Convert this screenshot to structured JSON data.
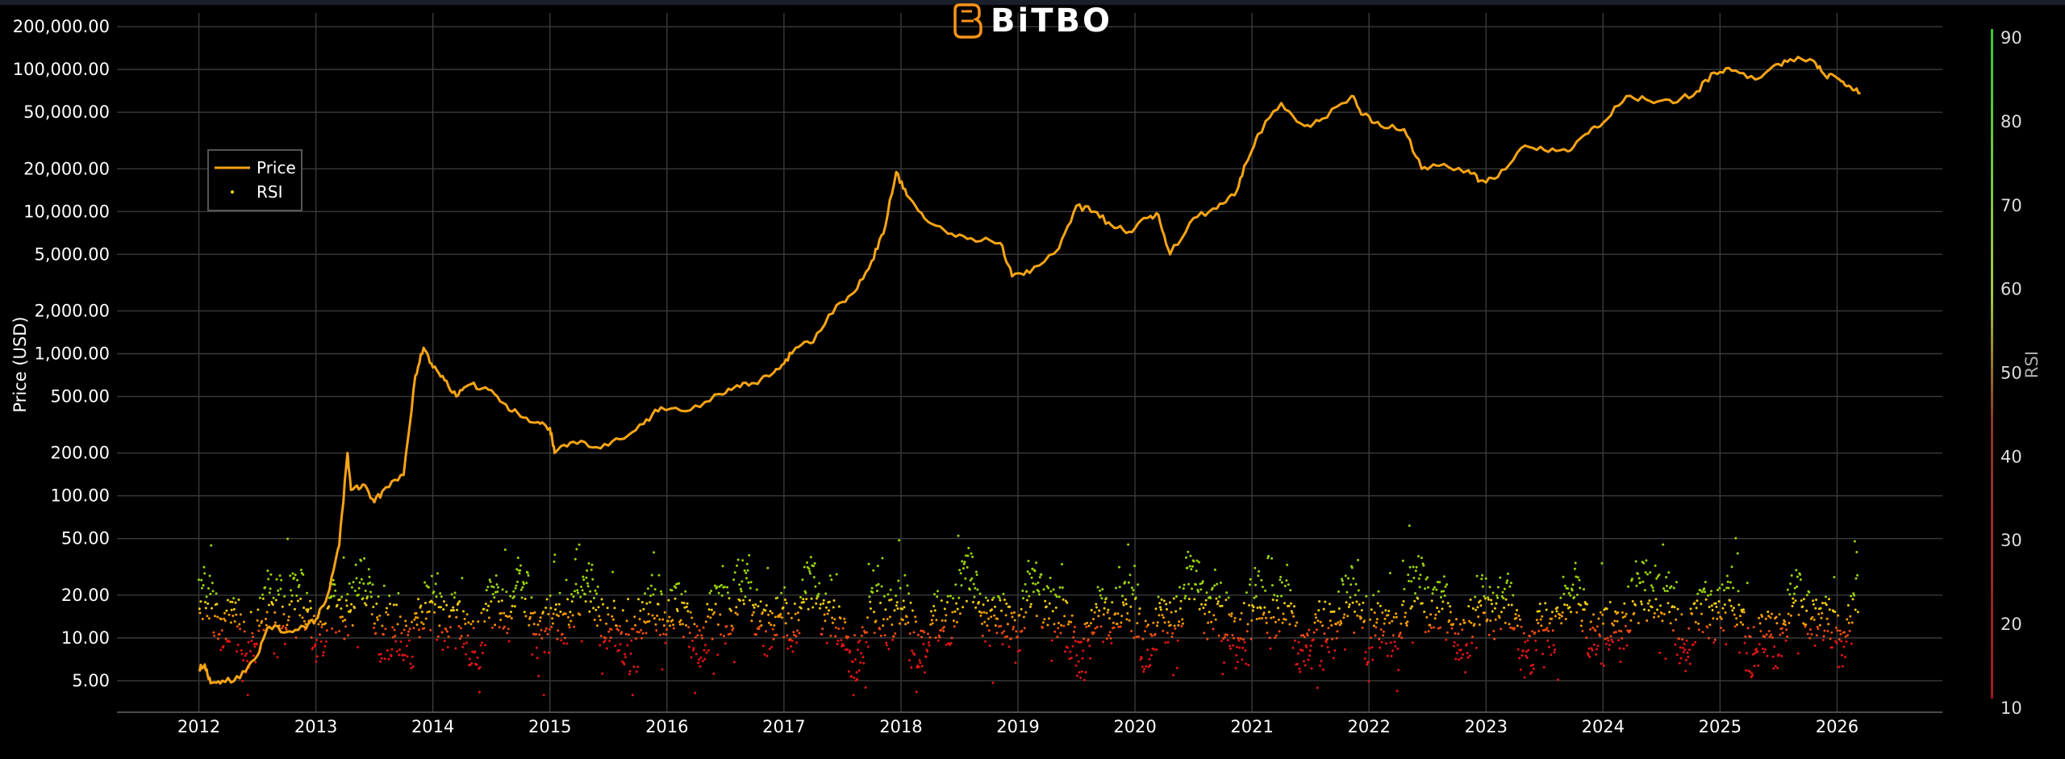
{
  "brand": {
    "name": "BiTBO",
    "logo_color": "#f7931a"
  },
  "chart_data": {
    "type": "line",
    "title": "",
    "xlabel": "",
    "ylabel": "Price (USD)",
    "y2label": "RSI",
    "yscale": "log",
    "ylim": [
      3,
      250000
    ],
    "y2lim": [
      9.5,
      93
    ],
    "xlim": [
      2011.3,
      2026.9
    ],
    "grid": true,
    "legend_position": "top-left",
    "colors": {
      "background": "#000000",
      "grid": "#3a3a3a",
      "price": "#f7a416",
      "rsi_low": "#e01010",
      "rsi_mid": "#f59b00",
      "rsi_high": "#9ad40a"
    },
    "x_ticks": [
      "2012",
      "2013",
      "2014",
      "2015",
      "2016",
      "2017",
      "2018",
      "2019",
      "2020",
      "2021",
      "2022",
      "2023",
      "2024",
      "2025",
      "2026"
    ],
    "y_ticks": [
      {
        "value": 200000,
        "label": "200,000.00"
      },
      {
        "value": 100000,
        "label": "100,000.00"
      },
      {
        "value": 50000,
        "label": "50,000.00"
      },
      {
        "value": 20000,
        "label": "20,000.00"
      },
      {
        "value": 10000,
        "label": "10,000.00"
      },
      {
        "value": 5000,
        "label": "5,000.00"
      },
      {
        "value": 2000,
        "label": "2,000.00"
      },
      {
        "value": 1000,
        "label": "1,000.00"
      },
      {
        "value": 500,
        "label": "500.00"
      },
      {
        "value": 200,
        "label": "200.00"
      },
      {
        "value": 100,
        "label": "100.00"
      },
      {
        "value": 50,
        "label": "50.00"
      },
      {
        "value": 20,
        "label": "20.00"
      },
      {
        "value": 10,
        "label": "10.00"
      },
      {
        "value": 5,
        "label": "5.00"
      }
    ],
    "y2_ticks": [
      "90",
      "80",
      "70",
      "60",
      "50",
      "40",
      "30",
      "20",
      "10"
    ],
    "series": [
      {
        "name": "Price",
        "type": "line",
        "x": [
          2012.0,
          2012.05,
          2012.1,
          2012.2,
          2012.35,
          2012.5,
          2012.6,
          2012.75,
          2012.9,
          2013.0,
          2013.1,
          2013.2,
          2013.27,
          2013.3,
          2013.4,
          2013.5,
          2013.6,
          2013.75,
          2013.85,
          2013.92,
          2014.0,
          2014.1,
          2014.2,
          2014.3,
          2014.45,
          2014.6,
          2014.75,
          2014.9,
          2015.0,
          2015.04,
          2015.2,
          2015.4,
          2015.6,
          2015.8,
          2015.95,
          2016.2,
          2016.45,
          2016.6,
          2016.75,
          2016.9,
          2017.0,
          2017.1,
          2017.25,
          2017.45,
          2017.6,
          2017.75,
          2017.85,
          2017.96,
          2018.05,
          2018.2,
          2018.4,
          2018.6,
          2018.85,
          2018.95,
          2019.1,
          2019.35,
          2019.5,
          2019.65,
          2019.8,
          2019.95,
          2020.1,
          2020.2,
          2020.3,
          2020.5,
          2020.7,
          2020.85,
          2020.95,
          2021.05,
          2021.25,
          2021.45,
          2021.6,
          2021.85,
          2021.95,
          2022.1,
          2022.3,
          2022.45,
          2022.6,
          2022.85,
          2022.95,
          2023.1,
          2023.3,
          2023.5,
          2023.7,
          2023.85,
          2024.0,
          2024.2,
          2024.4,
          2024.6,
          2024.8,
          2024.95,
          2025.1,
          2025.3,
          2025.45,
          2025.6,
          2025.8,
          2025.9,
          2026.0,
          2026.1,
          2026.2
        ],
        "y": [
          6,
          6.5,
          4.8,
          5,
          5.2,
          7.5,
          12,
          11,
          12,
          13.5,
          20,
          45,
          200,
          110,
          120,
          90,
          115,
          140,
          700,
          1100,
          800,
          650,
          500,
          600,
          580,
          450,
          360,
          330,
          300,
          200,
          240,
          220,
          250,
          320,
          420,
          400,
          520,
          600,
          620,
          720,
          850,
          1100,
          1200,
          2200,
          2700,
          4500,
          7000,
          19000,
          13000,
          9000,
          7000,
          6500,
          6000,
          3500,
          3700,
          5500,
          11000,
          10000,
          8000,
          7200,
          9000,
          9500,
          5000,
          9000,
          10500,
          13000,
          22000,
          35000,
          58000,
          40000,
          45000,
          65000,
          48000,
          40000,
          38000,
          20000,
          21000,
          19500,
          16500,
          17500,
          28000,
          27000,
          26500,
          35000,
          42000,
          65000,
          60000,
          58000,
          70000,
          95000,
          98000,
          85000,
          105000,
          118000,
          115000,
          90000,
          87000,
          77000,
          68000
        ]
      },
      {
        "name": "RSI",
        "type": "scatter",
        "axis": "right"
      }
    ]
  }
}
